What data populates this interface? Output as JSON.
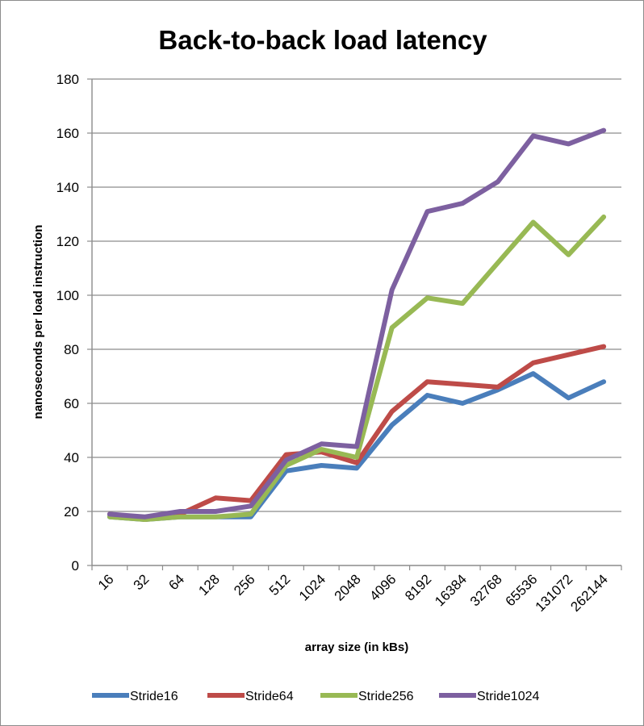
{
  "chart_data": {
    "type": "line",
    "title": "Back-to-back load latency",
    "xlabel": "array size (in kBs)",
    "ylabel": "nanoseconds per load instruction",
    "categories": [
      "16",
      "32",
      "64",
      "128",
      "256",
      "512",
      "1024",
      "2048",
      "4096",
      "8192",
      "16384",
      "32768",
      "65536",
      "131072",
      "262144"
    ],
    "ylim": [
      0,
      180
    ],
    "yticks": [
      0,
      20,
      40,
      60,
      80,
      100,
      120,
      140,
      160,
      180
    ],
    "grid": true,
    "legend_position": "bottom",
    "series": [
      {
        "name": "Stride16",
        "color": "#4a7ebb",
        "values": [
          18,
          17,
          18,
          18,
          18,
          35,
          37,
          36,
          52,
          63,
          60,
          65,
          71,
          62,
          68
        ]
      },
      {
        "name": "Stride64",
        "color": "#be4b48",
        "values": [
          19,
          17,
          19,
          25,
          24,
          41,
          42,
          38,
          57,
          68,
          67,
          66,
          75,
          78,
          81
        ]
      },
      {
        "name": "Stride256",
        "color": "#98b954",
        "values": [
          18,
          17,
          18,
          18,
          19,
          37,
          43,
          40,
          88,
          99,
          97,
          112,
          127,
          115,
          129
        ]
      },
      {
        "name": "Stride1024",
        "color": "#7d60a0",
        "values": [
          19,
          18,
          20,
          20,
          22,
          39,
          45,
          44,
          102,
          131,
          134,
          142,
          159,
          156,
          161
        ]
      }
    ]
  }
}
